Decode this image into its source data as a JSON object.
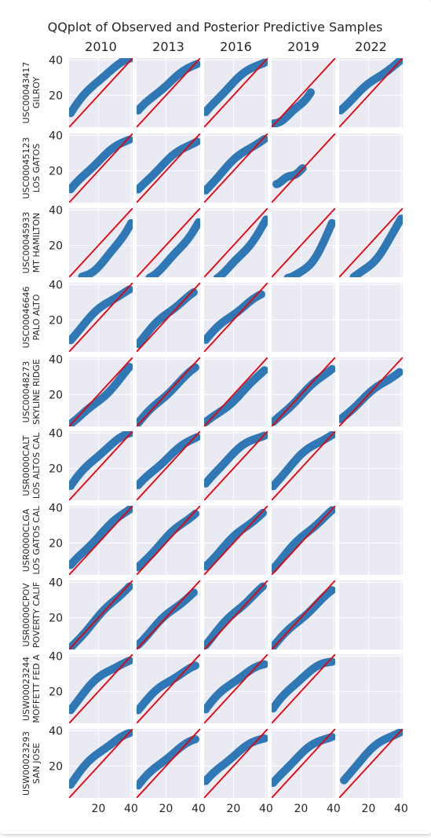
{
  "chart_data": {
    "type": "scatter",
    "title": "QQplot of Observed and Posterior Predictive Samples",
    "columns": [
      "2010",
      "2013",
      "2016",
      "2019",
      "2022"
    ],
    "rows": [
      {
        "station": "USC00043417",
        "name": "GILROY"
      },
      {
        "station": "USC00045123",
        "name": "LOS GATOS"
      },
      {
        "station": "USC00045933",
        "name": "MT HAMILTON"
      },
      {
        "station": "USC00046646",
        "name": "PALO ALTO"
      },
      {
        "station": "USC00048273",
        "name": "SKYLINE RIDGE"
      },
      {
        "station": "USR0000CALT",
        "name": "LOS ALTOS CAL"
      },
      {
        "station": "USR0000CLGA",
        "name": "LOS GATOS CAL"
      },
      {
        "station": "USR0000CPOV",
        "name": "POVERTY CALIF"
      },
      {
        "station": "USW00023244",
        "name": "MOFFETT FED A"
      },
      {
        "station": "USW00023293",
        "name": "SAN JOSE"
      }
    ],
    "xlim": [
      2,
      41
    ],
    "ylim": [
      2,
      41
    ],
    "xticks": [
      20,
      40
    ],
    "yticks": [
      20,
      40
    ],
    "reference_line": "y = x",
    "marker_color": "#2f78b5",
    "line_color": "#e8000b",
    "background_color": "#eaeaf2",
    "grid": true,
    "panels": [
      [
        {
          "x": [
            3,
            41
          ],
          "y": [
            10,
            41
          ],
          "bend": 0.3
        },
        {
          "x": [
            3,
            39
          ],
          "y": [
            11,
            38
          ],
          "bend": 0.15
        },
        {
          "x": [
            3,
            39
          ],
          "y": [
            10,
            39
          ],
          "bend": 0.25
        },
        {
          "x": [
            3,
            26
          ],
          "y": [
            4,
            22
          ],
          "bend": -0.3
        },
        {
          "x": [
            3,
            39
          ],
          "y": [
            12,
            39
          ],
          "bend": 0.1
        }
      ],
      [
        {
          "x": [
            3,
            39
          ],
          "y": [
            9,
            38
          ],
          "bend": 0.2
        },
        {
          "x": [
            3,
            39
          ],
          "y": [
            9,
            37
          ],
          "bend": 0.2
        },
        {
          "x": [
            3,
            39
          ],
          "y": [
            9,
            38
          ],
          "bend": 0.2
        },
        {
          "x": [
            5,
            21
          ],
          "y": [
            13,
            21
          ],
          "bend": -0.1
        },
        null
      ],
      [
        {
          "x": [
            10,
            40
          ],
          "y": [
            2,
            33
          ],
          "bend": -0.3
        },
        {
          "x": [
            10,
            40
          ],
          "y": [
            2,
            33
          ],
          "bend": -0.2
        },
        {
          "x": [
            10,
            40
          ],
          "y": [
            2,
            34
          ],
          "bend": -0.2
        },
        {
          "x": [
            12,
            39
          ],
          "y": [
            2,
            32
          ],
          "bend": -0.5
        },
        {
          "x": [
            11,
            40
          ],
          "y": [
            2,
            35
          ],
          "bend": -0.3
        }
      ],
      [
        {
          "x": [
            3,
            39
          ],
          "y": [
            9,
            37
          ],
          "bend": 0.25
        },
        {
          "x": [
            3,
            37
          ],
          "y": [
            7,
            35
          ],
          "bend": 0.15
        },
        {
          "x": [
            3,
            37
          ],
          "y": [
            9,
            34
          ],
          "bend": 0.15
        },
        null,
        null
      ],
      [
        {
          "x": [
            3,
            39
          ],
          "y": [
            4,
            35
          ],
          "bend": -0.15
        },
        {
          "x": [
            3,
            38
          ],
          "y": [
            4,
            35
          ],
          "bend": 0.05
        },
        {
          "x": [
            3,
            39
          ],
          "y": [
            4,
            34
          ],
          "bend": -0.1
        },
        {
          "x": [
            3,
            39
          ],
          "y": [
            4,
            35
          ],
          "bend": 0.05
        },
        {
          "x": [
            3,
            39
          ],
          "y": [
            6,
            33
          ],
          "bend": 0.1
        }
      ],
      [
        {
          "x": [
            3,
            40
          ],
          "y": [
            10,
            40
          ],
          "bend": 0.25
        },
        {
          "x": [
            3,
            39
          ],
          "y": [
            10,
            38
          ],
          "bend": 0.15
        },
        {
          "x": [
            3,
            39
          ],
          "y": [
            11,
            39
          ],
          "bend": 0.3
        },
        {
          "x": [
            3,
            39
          ],
          "y": [
            10,
            39
          ],
          "bend": 0.25
        },
        null
      ],
      [
        {
          "x": [
            3,
            40
          ],
          "y": [
            7,
            40
          ],
          "bend": 0.1
        },
        {
          "x": [
            3,
            38
          ],
          "y": [
            6,
            37
          ],
          "bend": 0.1
        },
        {
          "x": [
            3,
            38
          ],
          "y": [
            7,
            37
          ],
          "bend": 0.1
        },
        {
          "x": [
            3,
            39
          ],
          "y": [
            6,
            38
          ],
          "bend": 0.1
        },
        null
      ],
      [
        {
          "x": [
            3,
            39
          ],
          "y": [
            3,
            38
          ],
          "bend": 0.05
        },
        {
          "x": [
            3,
            37
          ],
          "y": [
            5,
            34
          ],
          "bend": 0.1
        },
        {
          "x": [
            3,
            38
          ],
          "y": [
            5,
            37
          ],
          "bend": 0.1
        },
        {
          "x": [
            3,
            39
          ],
          "y": [
            4,
            35
          ],
          "bend": 0.05
        },
        null
      ],
      [
        {
          "x": [
            3,
            39
          ],
          "y": [
            10,
            37
          ],
          "bend": 0.35
        },
        {
          "x": [
            3,
            38
          ],
          "y": [
            10,
            34
          ],
          "bend": 0.25
        },
        {
          "x": [
            3,
            39
          ],
          "y": [
            10,
            35
          ],
          "bend": 0.3
        },
        {
          "x": [
            3,
            39
          ],
          "y": [
            10,
            37
          ],
          "bend": 0.35
        },
        null
      ],
      [
        {
          "x": [
            3,
            39
          ],
          "y": [
            10,
            38
          ],
          "bend": 0.3
        },
        {
          "x": [
            3,
            38
          ],
          "y": [
            9,
            35
          ],
          "bend": 0.2
        },
        {
          "x": [
            3,
            39
          ],
          "y": [
            11,
            36
          ],
          "bend": 0.25
        },
        {
          "x": [
            3,
            39
          ],
          "y": [
            10,
            37
          ],
          "bend": 0.3
        },
        {
          "x": [
            5,
            41
          ],
          "y": [
            12,
            40
          ],
          "bend": 0.3
        }
      ]
    ]
  }
}
